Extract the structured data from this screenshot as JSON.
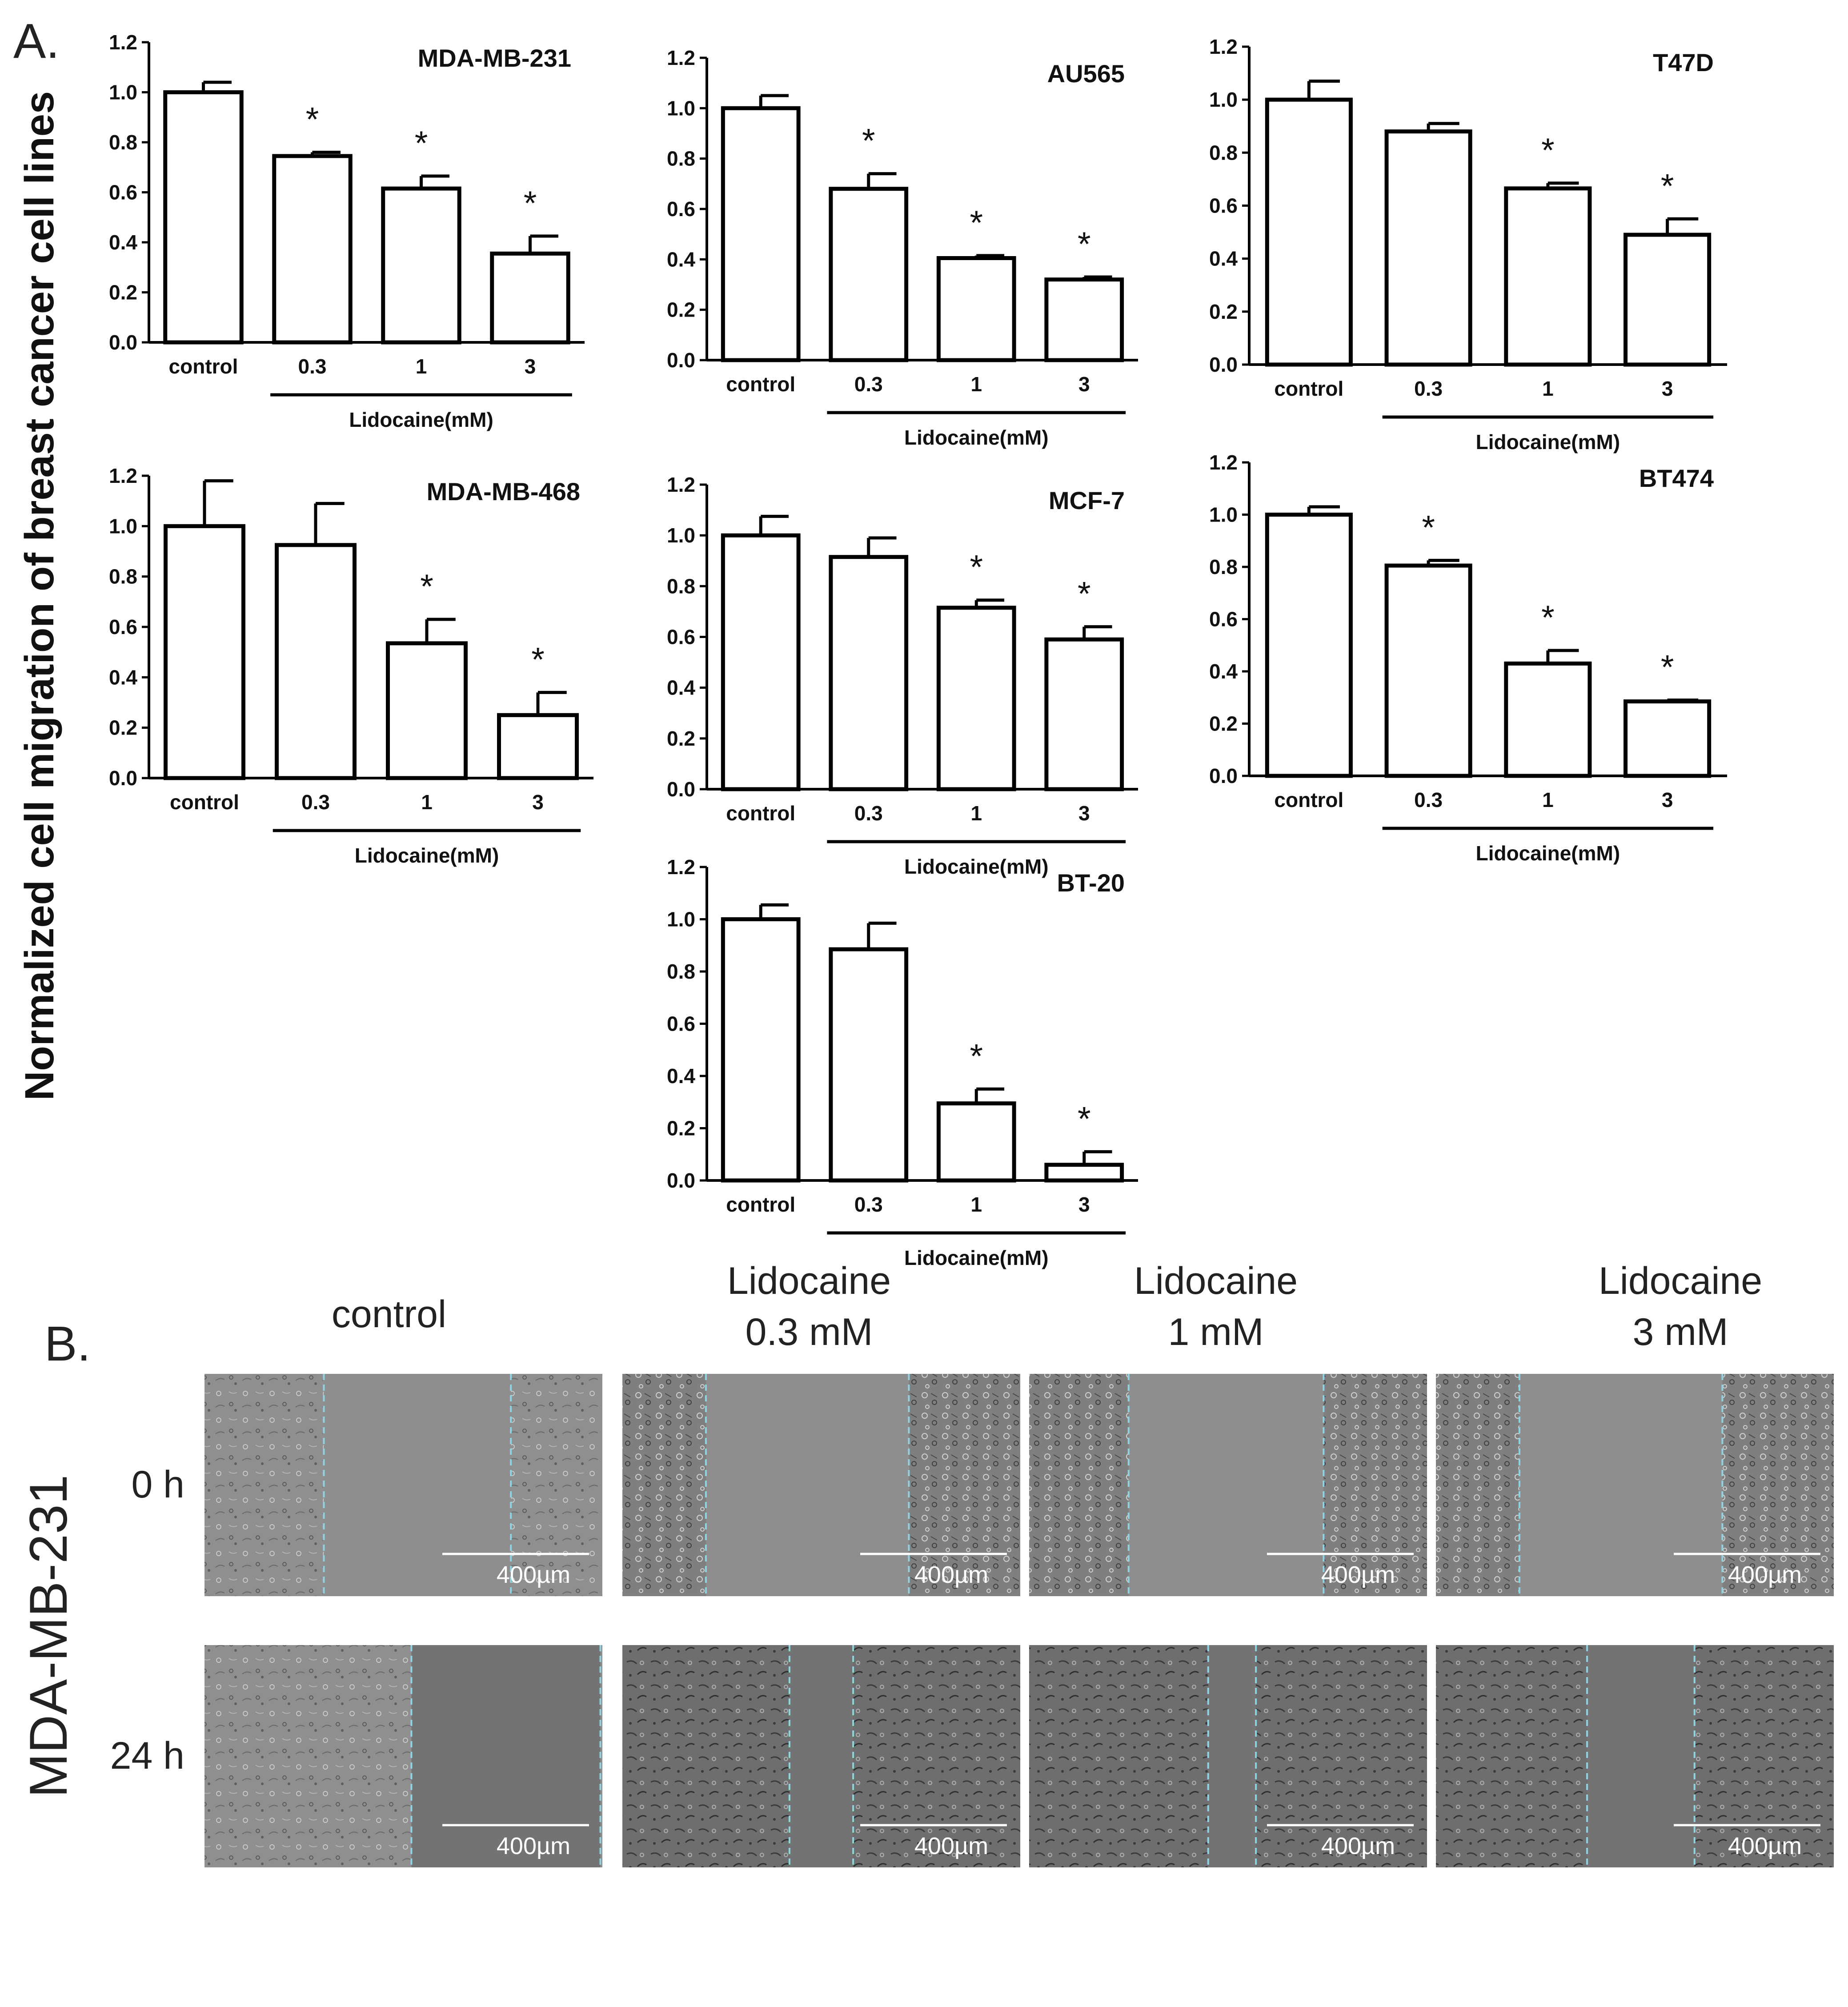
{
  "panel_a_label": "A.",
  "panel_b_label": "B.",
  "shared_ylabel": "Normalized cell migration of breast cancer cell lines",
  "chart_data": [
    {
      "type": "bar",
      "title": "MDA-MB-231",
      "categories": [
        "control",
        "0.3",
        "1",
        "3"
      ],
      "values": [
        1.0,
        0.745,
        0.615,
        0.355
      ],
      "errors": [
        0.04,
        0.015,
        0.05,
        0.07
      ],
      "significant": [
        false,
        true,
        true,
        true
      ],
      "xlabel": "Lidocaine(mM)",
      "ylim": [
        0,
        1.2
      ],
      "yticks": [
        "0.0",
        "0.2",
        "0.4",
        "0.6",
        "0.8",
        "1.0",
        "1.2"
      ]
    },
    {
      "type": "bar",
      "title": "AU565",
      "categories": [
        "control",
        "0.3",
        "1",
        "3"
      ],
      "values": [
        1.0,
        0.68,
        0.405,
        0.32
      ],
      "errors": [
        0.05,
        0.06,
        0.01,
        0.01
      ],
      "significant": [
        false,
        true,
        true,
        true
      ],
      "xlabel": "Lidocaine(mM)",
      "ylim": [
        0,
        1.2
      ],
      "yticks": [
        "0.0",
        "0.2",
        "0.4",
        "0.6",
        "0.8",
        "1.0",
        "1.2"
      ]
    },
    {
      "type": "bar",
      "title": "T47D",
      "categories": [
        "control",
        "0.3",
        "1",
        "3"
      ],
      "values": [
        1.0,
        0.88,
        0.665,
        0.49
      ],
      "errors": [
        0.07,
        0.03,
        0.02,
        0.06
      ],
      "significant": [
        false,
        false,
        true,
        true
      ],
      "xlabel": "Lidocaine(mM)",
      "ylim": [
        0,
        1.2
      ],
      "yticks": [
        "0.0",
        "0.2",
        "0.4",
        "0.6",
        "0.8",
        "1.0",
        "1.2"
      ]
    },
    {
      "type": "bar",
      "title": "MDA-MB-468",
      "categories": [
        "control",
        "0.3",
        "1",
        "3"
      ],
      "values": [
        1.0,
        0.925,
        0.535,
        0.25
      ],
      "errors": [
        0.18,
        0.165,
        0.095,
        0.09
      ],
      "significant": [
        false,
        false,
        true,
        true
      ],
      "xlabel": "Lidocaine(mM)",
      "ylim": [
        0,
        1.2
      ],
      "yticks": [
        "0.0",
        "0.2",
        "0.4",
        "0.6",
        "0.8",
        "1.0",
        "1.2"
      ]
    },
    {
      "type": "bar",
      "title": "MCF-7",
      "categories": [
        "control",
        "0.3",
        "1",
        "3"
      ],
      "values": [
        1.0,
        0.915,
        0.715,
        0.59
      ],
      "errors": [
        0.075,
        0.075,
        0.03,
        0.05
      ],
      "significant": [
        false,
        false,
        true,
        true
      ],
      "xlabel": "Lidocaine(mM)",
      "ylim": [
        0,
        1.2
      ],
      "yticks": [
        "0.0",
        "0.2",
        "0.4",
        "0.6",
        "0.8",
        "1.0",
        "1.2"
      ]
    },
    {
      "type": "bar",
      "title": "BT474",
      "categories": [
        "control",
        "0.3",
        "1",
        "3"
      ],
      "values": [
        1.0,
        0.805,
        0.43,
        0.285
      ],
      "errors": [
        0.03,
        0.02,
        0.05,
        0.005
      ],
      "significant": [
        false,
        true,
        true,
        true
      ],
      "xlabel": "Lidocaine(mM)",
      "ylim": [
        0,
        1.2
      ],
      "yticks": [
        "0.0",
        "0.2",
        "0.4",
        "0.6",
        "0.8",
        "1.0",
        "1.2"
      ]
    },
    {
      "type": "bar",
      "title": "BT-20",
      "categories": [
        "control",
        "0.3",
        "1",
        "3"
      ],
      "values": [
        1.0,
        0.885,
        0.295,
        0.06
      ],
      "errors": [
        0.055,
        0.1,
        0.055,
        0.05
      ],
      "significant": [
        false,
        false,
        true,
        true
      ],
      "xlabel": "Lidocaine(mM)",
      "ylim": [
        0,
        1.2
      ],
      "yticks": [
        "0.0",
        "0.2",
        "0.4",
        "0.6",
        "0.8",
        "1.0",
        "1.2"
      ]
    }
  ],
  "significance_marker": "*",
  "micrographs": {
    "cell_line": "MDA-MB-231",
    "row_labels": [
      "0 h",
      "24 h"
    ],
    "columns": [
      {
        "line1": "control",
        "line2": ""
      },
      {
        "line1": "Lidocaine",
        "line2": "0.3 mM"
      },
      {
        "line1": "Lidocaine",
        "line2": "1 mM"
      },
      {
        "line1": "Lidocaine",
        "line2": "3 mM"
      }
    ],
    "scale_bar": "400µm",
    "guide_line_color": "#8fd3e0"
  }
}
